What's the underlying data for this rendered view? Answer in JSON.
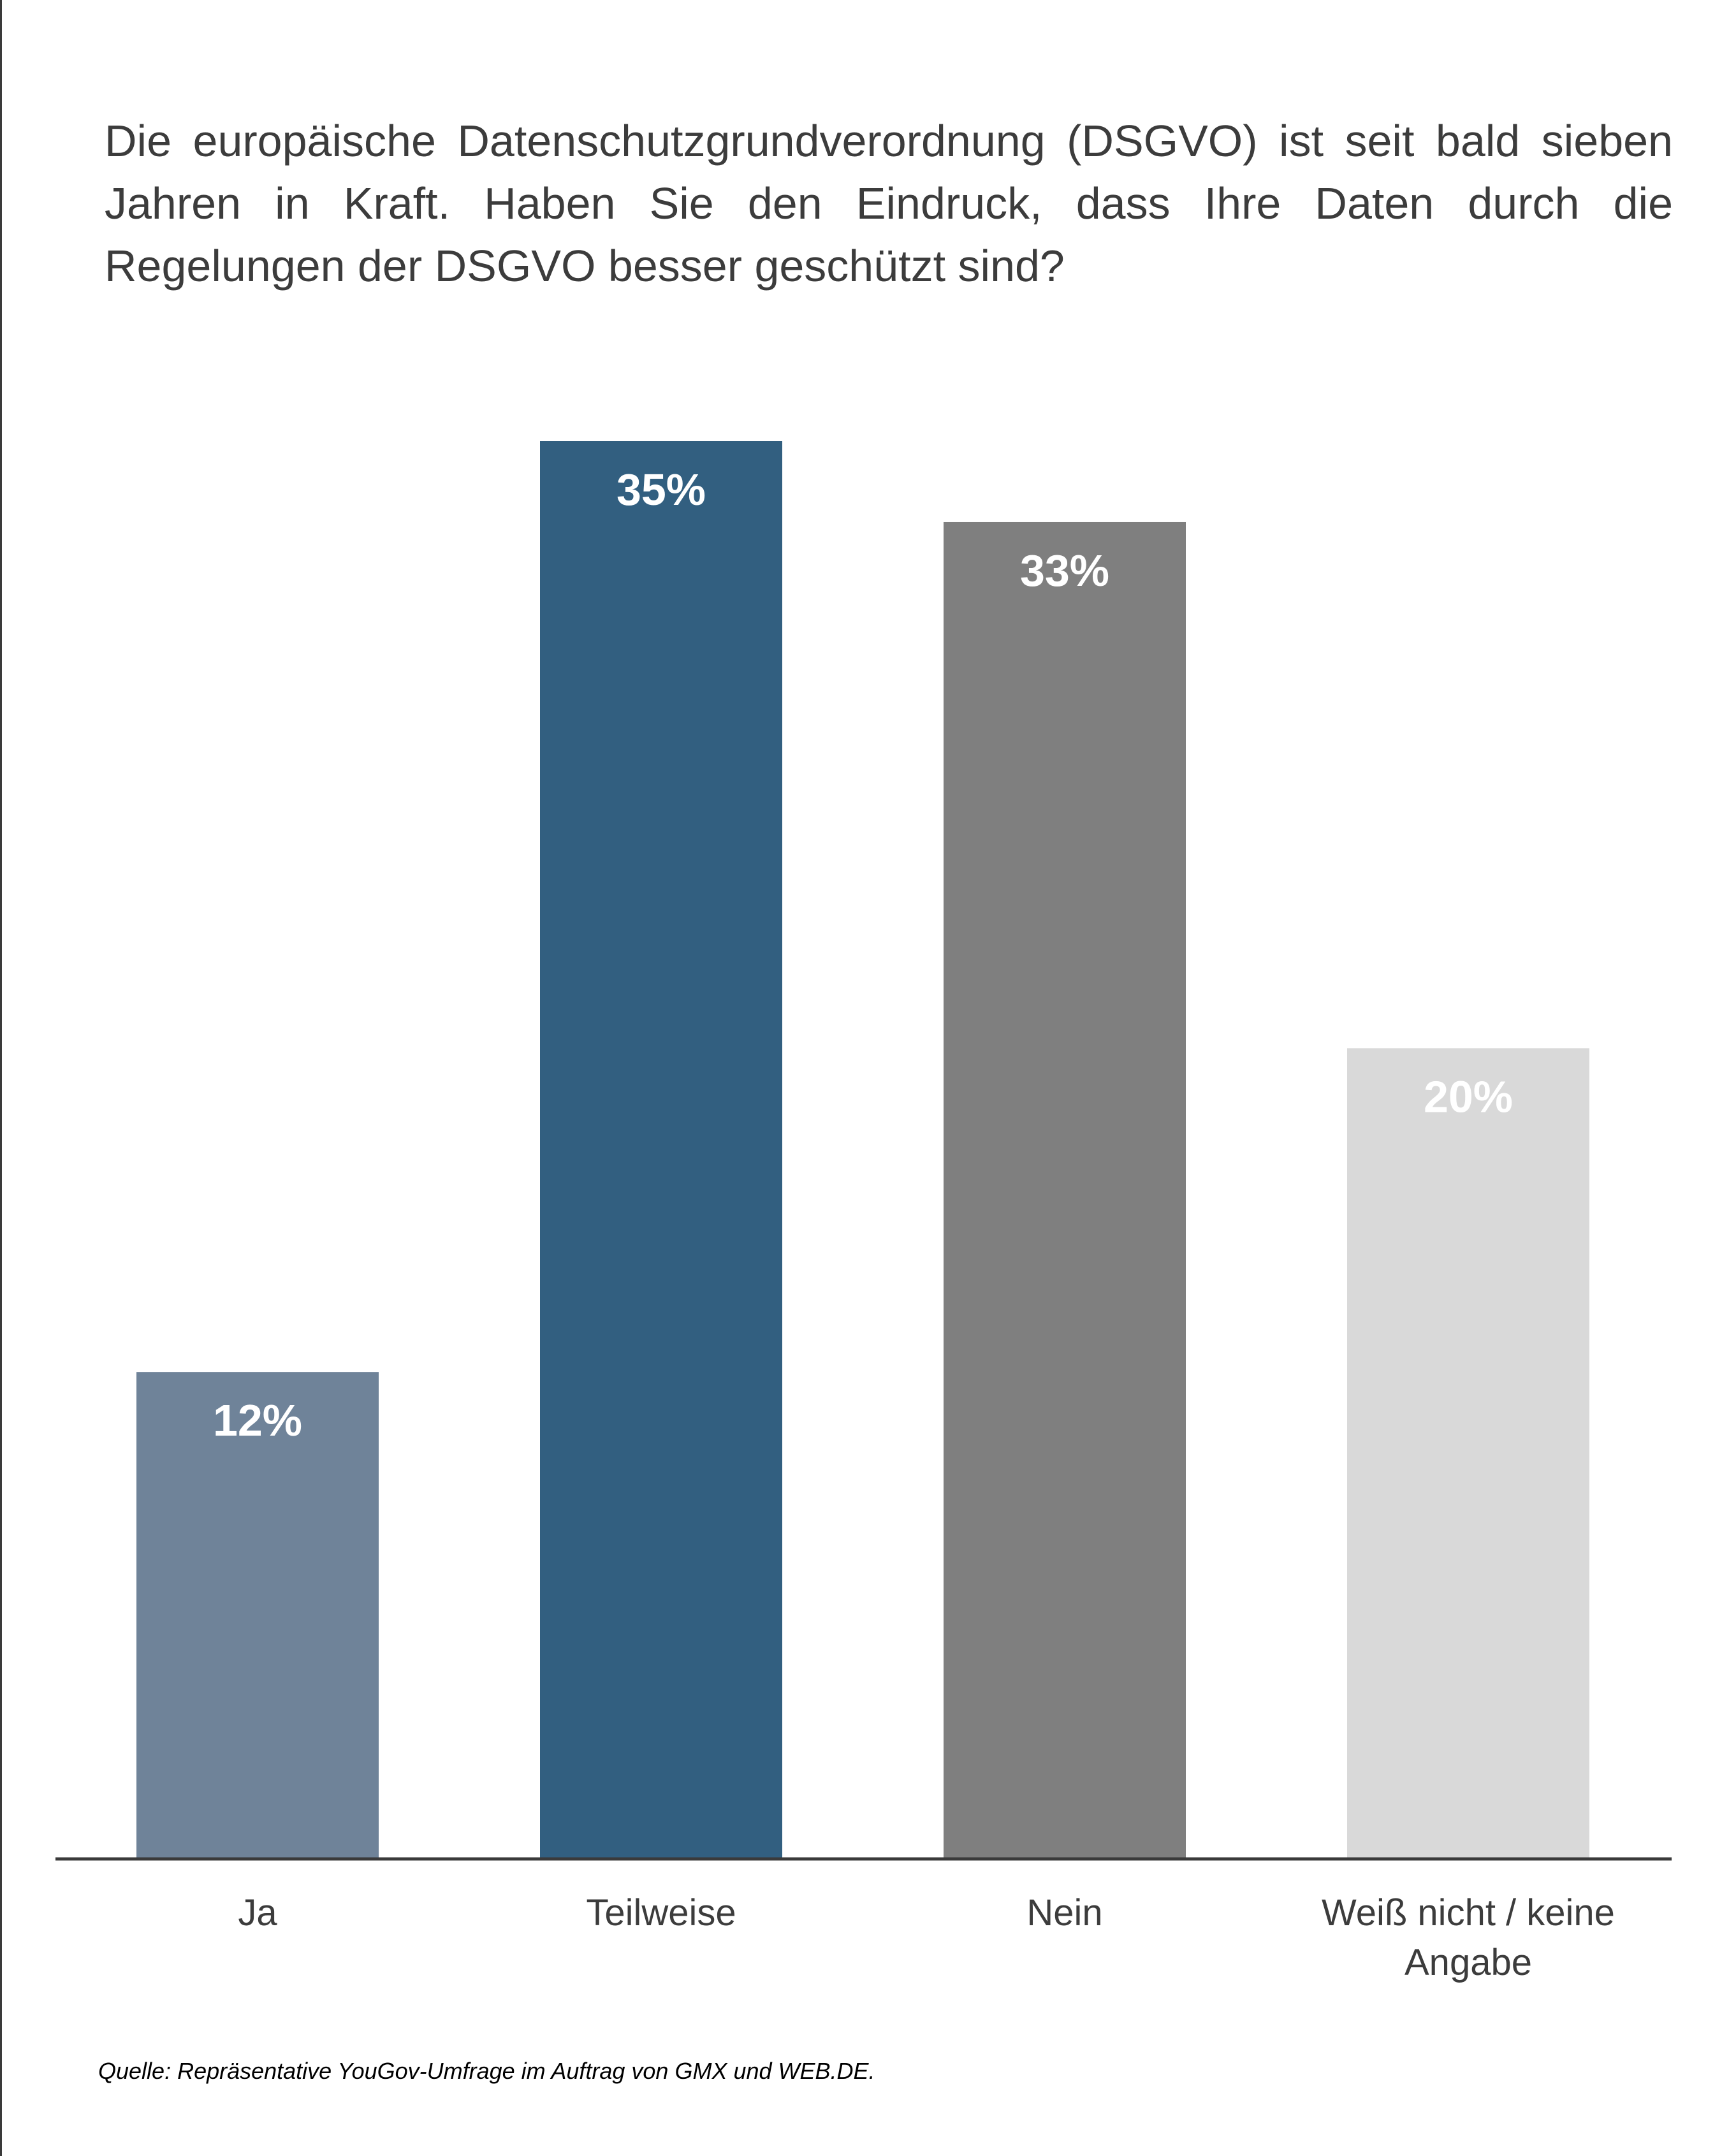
{
  "chart_data": {
    "type": "bar",
    "title": "Die europäische Datenschutzgrundverordnung (DSGVO) ist seit bald sieben Jahren in Kraft. Haben Sie den Eindruck, dass Ihre Daten durch die Regelungen der DSGVO besser geschützt sind?",
    "categories": [
      "Ja",
      "Teilweise",
      "Nein",
      "Weiß nicht / keine Angabe"
    ],
    "category_lines": [
      [
        "Ja"
      ],
      [
        "Teilweise"
      ],
      [
        "Nein"
      ],
      [
        "Weiß nicht / keine",
        "Angabe"
      ]
    ],
    "values": [
      12,
      35,
      33,
      20
    ],
    "value_labels": [
      "12%",
      "35%",
      "33%",
      "20%"
    ],
    "bar_colors": [
      "#6f8399",
      "#325f80",
      "#7f7f7f",
      "#d9d9d9"
    ],
    "label_color": "#ffffff",
    "ylim": [
      0,
      35
    ],
    "grid": false,
    "legend": "none",
    "xlabel": "",
    "ylabel": ""
  },
  "source": "Quelle: Repräsentative YouGov-Umfrage im Auftrag von GMX und WEB.DE."
}
